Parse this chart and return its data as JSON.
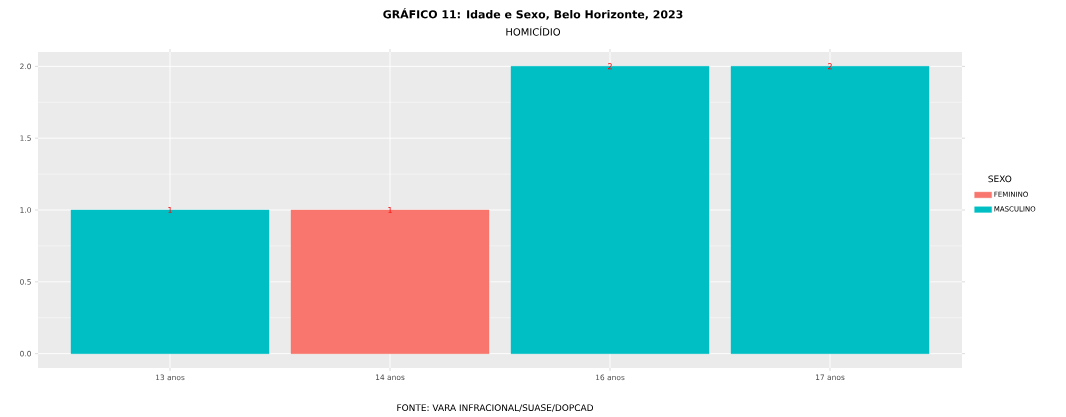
{
  "chart_data": {
    "type": "bar",
    "title": "GRÁFICO 11: Idade e Sexo, Belo Horizonte, 2023",
    "subtitle": "HOMICÍDIO",
    "categories": [
      "13 anos",
      "14 anos",
      "16 anos",
      "17 anos"
    ],
    "series": [
      {
        "name": "FEMININO",
        "color": "#f8766d",
        "values": [
          null,
          1,
          null,
          null
        ]
      },
      {
        "name": "MASCULINO",
        "color": "#00bfc4",
        "values": [
          1,
          null,
          2,
          2
        ]
      }
    ],
    "data_labels": true,
    "legend": "right",
    "legend_title": "SEXO",
    "grid": true,
    "ylim": [
      -0.1,
      2.1
    ],
    "yticks": [
      {
        "value": 0,
        "label": "0.0"
      },
      {
        "value": 0.5,
        "label": "0.5"
      },
      {
        "value": 1,
        "label": "1.0"
      },
      {
        "value": 1.5,
        "label": "1.5"
      },
      {
        "value": 2,
        "label": "2.0"
      }
    ],
    "annotations": [
      "FONTE: VARA INFRACIONAL/SUASE/DOPCAD"
    ]
  }
}
